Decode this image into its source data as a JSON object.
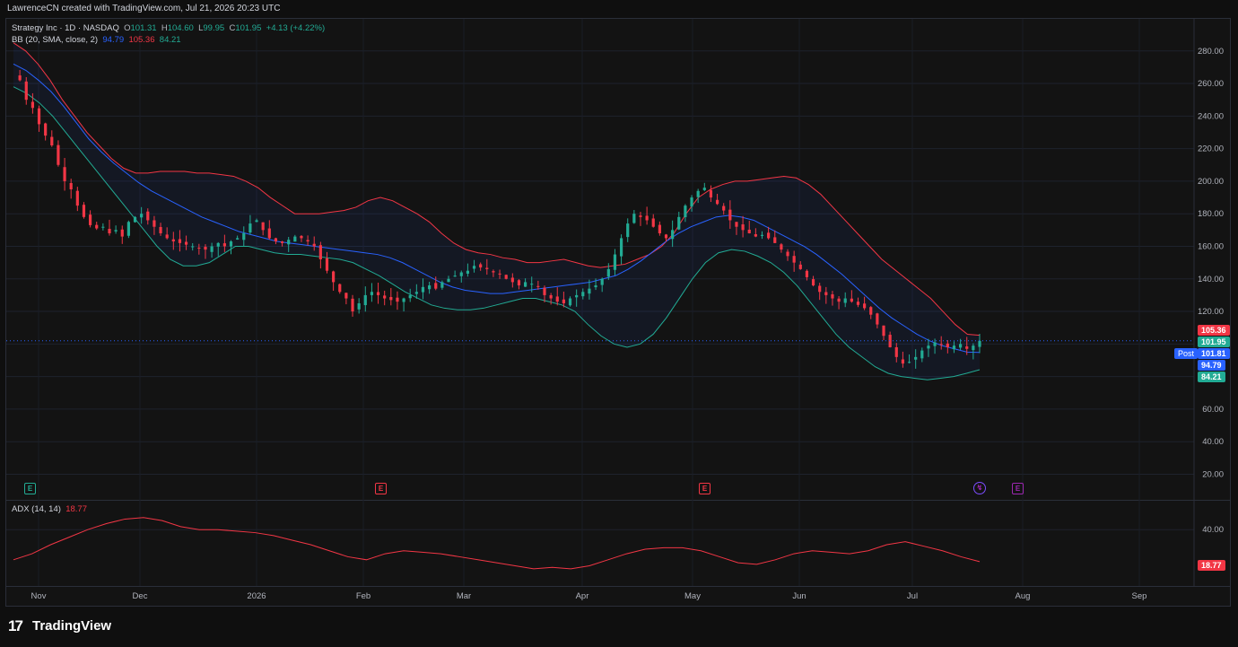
{
  "header": {
    "credit": "LawrenceCN created with TradingView.com, Jul 21, 2026 20:23 UTC"
  },
  "legend": {
    "symbol": "Strategy Inc · 1D · NASDAQ",
    "o_label": "O",
    "o_value": "101.31",
    "h_label": "H",
    "h_value": "104.60",
    "l_label": "L",
    "l_value": "99.95",
    "c_label": "C",
    "c_value": "101.95",
    "change": "+4.13 (+4.22%)",
    "bb_label": "BB (20, SMA, close, 2)",
    "bb_basis": "94.79",
    "bb_upper": "105.36",
    "bb_lower": "84.21",
    "adx_label": "ADX (14, 14)",
    "adx_value": "18.77"
  },
  "price_tags": {
    "upper": "105.36",
    "last": "101.95",
    "post_label": "Post",
    "post_value": "101.81",
    "basis": "94.79",
    "lower": "84.21",
    "adx": "18.77"
  },
  "events": {
    "earnings_letter": "E"
  },
  "brand": {
    "name": "TradingView",
    "logo": "17"
  },
  "colors": {
    "up": "#22ab94",
    "down": "#f23645",
    "basis": "#2962ff",
    "upper": "#f23645",
    "lower": "#22ab94",
    "adx": "#f23645",
    "event_green": "#22ab94",
    "event_red": "#f23645",
    "event_purple": "#9c27b0"
  },
  "chart_data": [
    {
      "type": "candlestick",
      "title": "Strategy Inc · 1D · NASDAQ",
      "y_ticks": [
        20,
        40,
        60,
        80,
        100,
        120,
        140,
        160,
        180,
        200,
        220,
        240,
        260,
        280
      ],
      "y_tick_labels": [
        "20.00",
        "40.00",
        "60.00",
        "80.00",
        "100.00",
        "120.00",
        "140.00",
        "160.00",
        "180.00",
        "200.00",
        "220.00",
        "240.00",
        "260.00",
        "280.00"
      ],
      "ylim": [
        12,
        292
      ],
      "x_ticks": [
        "Nov",
        "Dec",
        "2026",
        "Feb",
        "Mar",
        "Apr",
        "May",
        "Jun",
        "Jul",
        "Aug",
        "Sep"
      ],
      "grid": true,
      "last_close": 101.95,
      "ohlc_close_path": [
        265,
        262,
        250,
        245,
        235,
        228,
        222,
        210,
        200,
        195,
        185,
        178,
        173,
        171,
        172,
        168,
        170,
        166,
        175,
        178,
        180,
        176,
        172,
        168,
        165,
        163,
        162,
        161,
        160,
        159,
        158,
        160,
        162,
        160,
        163,
        165,
        168,
        174,
        176,
        170,
        165,
        163,
        162,
        164,
        166,
        165,
        163,
        160,
        152,
        145,
        138,
        132,
        128,
        120,
        125,
        130,
        132,
        130,
        128,
        127,
        126,
        128,
        130,
        132,
        135,
        136,
        134,
        138,
        140,
        142,
        144,
        145,
        148,
        147,
        146,
        144,
        143,
        140,
        138,
        136,
        138,
        137,
        135,
        130,
        128,
        126,
        125,
        128,
        130,
        132,
        134,
        136,
        140,
        146,
        155,
        165,
        174,
        180,
        178,
        176,
        172,
        168,
        165,
        170,
        178,
        185,
        190,
        194,
        196,
        190,
        186,
        182,
        176,
        172,
        170,
        168,
        166,
        167,
        165,
        162,
        158,
        154,
        150,
        146,
        141,
        136,
        132,
        130,
        128,
        126,
        128,
        126,
        124,
        122,
        118,
        112,
        105,
        98,
        92,
        88,
        89,
        92,
        96,
        99,
        101,
        100,
        98,
        99,
        100,
        97,
        99,
        101.95
      ],
      "bb_upper": [
        285,
        280,
        272,
        262,
        250,
        240,
        230,
        222,
        214,
        208,
        205,
        205,
        206,
        206,
        206,
        205,
        205,
        204,
        203,
        200,
        196,
        190,
        185,
        180,
        180,
        180,
        181,
        182,
        184,
        188,
        190,
        188,
        184,
        180,
        175,
        168,
        162,
        158,
        156,
        155,
        153,
        152,
        150,
        150,
        151,
        152,
        150,
        148,
        147,
        148,
        149,
        152,
        155,
        160,
        168,
        180,
        190,
        195,
        198,
        200,
        200,
        201,
        202,
        203,
        202,
        198,
        192,
        184,
        176,
        168,
        160,
        152,
        146,
        140,
        134,
        128,
        120,
        112,
        106,
        105.36
      ],
      "bb_basis": [
        272,
        268,
        262,
        255,
        246,
        236,
        226,
        218,
        211,
        205,
        199,
        194,
        190,
        186,
        182,
        178,
        175,
        172,
        169,
        167,
        165,
        163,
        162,
        161,
        160,
        159,
        158,
        157,
        156,
        155,
        153,
        150,
        146,
        142,
        138,
        135,
        133,
        132,
        131,
        131,
        132,
        133,
        134,
        135,
        136,
        137,
        138,
        140,
        142,
        146,
        151,
        157,
        163,
        168,
        172,
        175,
        178,
        179,
        178,
        176,
        172,
        168,
        164,
        160,
        155,
        149,
        143,
        136,
        129,
        122,
        116,
        111,
        106,
        102,
        99,
        97,
        95,
        94.79
      ],
      "bb_lower": [
        258,
        254,
        248,
        240,
        230,
        220,
        210,
        200,
        190,
        180,
        170,
        160,
        152,
        148,
        148,
        150,
        155,
        160,
        160,
        158,
        156,
        155,
        155,
        154,
        153,
        152,
        150,
        146,
        142,
        137,
        132,
        128,
        124,
        122,
        121,
        121,
        122,
        124,
        126,
        128,
        128,
        126,
        124,
        120,
        112,
        105,
        100,
        98,
        100,
        106,
        116,
        128,
        140,
        150,
        156,
        158,
        157,
        154,
        150,
        144,
        136,
        126,
        116,
        106,
        98,
        92,
        86,
        82,
        80,
        79,
        78,
        79,
        80,
        82,
        84.21
      ]
    },
    {
      "type": "line",
      "title": "ADX (14, 14)",
      "y_ticks": [
        40
      ],
      "y_tick_labels": [
        "40.00"
      ],
      "ylim": [
        5,
        55
      ],
      "values": [
        20,
        24,
        30,
        35,
        40,
        44,
        47,
        48,
        46,
        42,
        40,
        40,
        39,
        38,
        36,
        33,
        30,
        26,
        22,
        20,
        24,
        26,
        25,
        24,
        22,
        20,
        18,
        16,
        14,
        15,
        14,
        16,
        20,
        24,
        27,
        28,
        28,
        26,
        22,
        18,
        17,
        20,
        24,
        26,
        25,
        24,
        26,
        30,
        32,
        29,
        26,
        22,
        18.77
      ]
    }
  ]
}
